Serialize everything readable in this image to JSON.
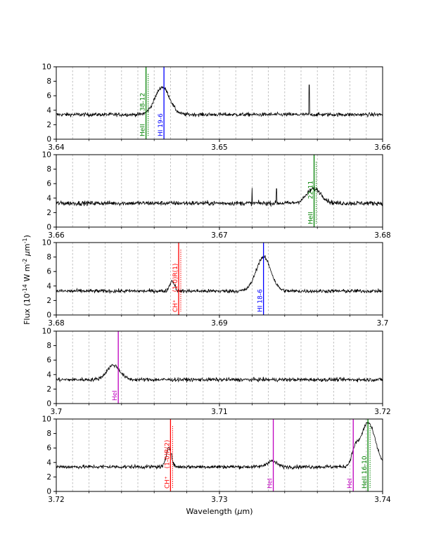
{
  "figure": {
    "ylabel": "Flux (10$^{-14}$ W m$^{-2}$ $\\mu$m$^{-1}$)",
    "xlabel": "Wavelength ($\\mu$m)"
  },
  "line_colors": {
    "HI": "#0000ff",
    "HeII": "#008000",
    "HeI": "#bf00bf",
    "CH+": "#ff0000"
  },
  "chart_data": [
    {
      "type": "line",
      "xlim": [
        3.64,
        3.66
      ],
      "ylim": [
        0,
        10
      ],
      "xticks": [
        "3.64",
        "3.65",
        "3.66"
      ],
      "yticks": [
        "0",
        "2",
        "4",
        "6",
        "8",
        "10"
      ],
      "grid": "vertical dashed",
      "continuum": 3.4,
      "noise": 0.25,
      "spikes": [
        [
          3.6555,
          7.5
        ]
      ],
      "emission": [
        [
          3.6465,
          7.2,
          0.00045
        ]
      ],
      "lines": [
        {
          "x": 3.6455,
          "label": "HeII",
          "label2": "38-12",
          "species": "HeII",
          "dashed": true
        },
        {
          "x": 3.6466,
          "label": "HI 19-6",
          "species": "HI"
        }
      ]
    },
    {
      "type": "line",
      "xlim": [
        3.66,
        3.68
      ],
      "ylim": [
        0,
        10
      ],
      "xticks": [
        "3.66",
        "3.67",
        "3.68"
      ],
      "yticks": [
        "0",
        "2",
        "4",
        "6",
        "8",
        "10"
      ],
      "grid": "vertical dashed",
      "continuum": 3.3,
      "noise": 0.3,
      "spikes": [
        [
          3.672,
          5.4
        ],
        [
          3.6735,
          5.3
        ]
      ],
      "emission": [
        [
          3.6758,
          5.3,
          0.00045
        ]
      ],
      "lines": [
        {
          "x": 3.6758,
          "label": "HeII",
          "label2": "22-11",
          "species": "HeII",
          "dashed": true
        }
      ]
    },
    {
      "type": "line",
      "xlim": [
        3.68,
        3.7
      ],
      "ylim": [
        0,
        10
      ],
      "xticks": [
        "3.68",
        "3.69",
        "3.7"
      ],
      "yticks": [
        "0",
        "2",
        "4",
        "6",
        "8",
        "10"
      ],
      "grid": "vertical dashed",
      "continuum": 3.3,
      "noise": 0.25,
      "spikes": [],
      "emission": [
        [
          3.6871,
          4.7,
          0.00015
        ],
        [
          3.6927,
          8.0,
          0.00045
        ]
      ],
      "lines": [
        {
          "x": 3.6875,
          "label": "CH⁺",
          "label2": "(1-0)R(1)",
          "species": "CH+",
          "dashed": true
        },
        {
          "x": 3.6927,
          "label": "HI 18-6",
          "species": "HI"
        }
      ]
    },
    {
      "type": "line",
      "xlim": [
        3.7,
        3.72
      ],
      "ylim": [
        0,
        10
      ],
      "xticks": [
        "3.7",
        "3.71",
        "3.72"
      ],
      "yticks": [
        "0",
        "2",
        "4",
        "6",
        "8",
        "10"
      ],
      "grid": "vertical dashed",
      "continuum": 3.3,
      "noise": 0.25,
      "spikes": [],
      "emission": [
        [
          3.7035,
          5.3,
          0.0004
        ]
      ],
      "lines": [
        {
          "x": 3.7038,
          "label": "HeI",
          "species": "HeI"
        }
      ]
    },
    {
      "type": "line",
      "xlim": [
        3.72,
        3.74
      ],
      "ylim": [
        0,
        10
      ],
      "xticks": [
        "3.72",
        "3.73",
        "3.74"
      ],
      "yticks": [
        "0",
        "2",
        "4",
        "6",
        "8",
        "10"
      ],
      "grid": "vertical dashed",
      "continuum": 3.4,
      "noise": 0.25,
      "spikes": [],
      "emission": [
        [
          3.7269,
          6.2,
          0.00015
        ],
        [
          3.7332,
          4.2,
          0.0003
        ],
        [
          3.7383,
          5.2,
          0.0002
        ],
        [
          3.7391,
          9.5,
          0.00045
        ]
      ],
      "lines": [
        {
          "x": 3.727,
          "label": "CH⁺",
          "label2": "(1-0)R(2)",
          "species": "CH+",
          "dashed": true
        },
        {
          "x": 3.7333,
          "label": "HeI",
          "species": "HeI"
        },
        {
          "x": 3.7382,
          "label": "HeI",
          "species": "HeI"
        },
        {
          "x": 3.7391,
          "label": "HeII 16-10",
          "species": "HeII",
          "dashed": true
        }
      ]
    }
  ]
}
